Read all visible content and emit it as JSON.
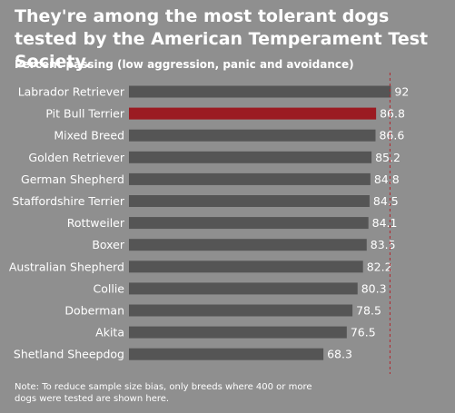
{
  "chart_data": {
    "type": "bar",
    "orientation": "horizontal",
    "title": "They're among the most tolerant dogs tested by the American Temperament Test Society.",
    "subtitle": "Percent passing (low aggression, panic and avoidance)",
    "categories": [
      "Labrador Retriever",
      "Pit Bull Terrier",
      "Mixed Breed",
      "Golden Retriever",
      "German Shepherd",
      "Staffordshire Terrier",
      "Rottweiler",
      "Boxer",
      "Australian Shepherd",
      "Collie",
      "Doberman",
      "Akita",
      "Shetland Sheepdog"
    ],
    "values": [
      92,
      86.8,
      86.6,
      85.2,
      84.8,
      84.5,
      84.1,
      83.5,
      82.2,
      80.3,
      78.5,
      76.5,
      68.3
    ],
    "value_labels": [
      "92",
      "86.8",
      "86.6",
      "85.2",
      "84.8",
      "84.5",
      "84.1",
      "83.5",
      "82.2",
      "80.3",
      "78.5",
      "76.5",
      "68.3"
    ],
    "highlight": "Pit Bull Terrier",
    "xlim": [
      0,
      100
    ],
    "reference_line": 92,
    "grid": false,
    "legend": "none",
    "colors": {
      "background": "#8f8f8f",
      "bar": "#555555",
      "highlight": "#9b1b22",
      "reference_line": "#b3262d"
    }
  },
  "note": "Note: To reduce sample size bias, only breeds where 400 or more dogs were tested are shown here."
}
